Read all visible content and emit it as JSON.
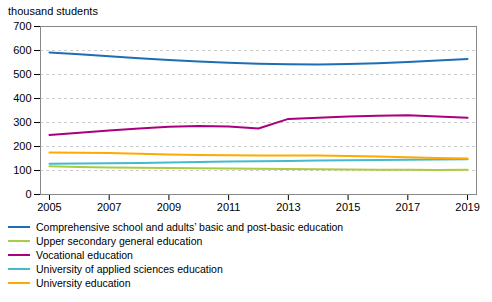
{
  "chart_data": {
    "type": "line",
    "ylabel": "thousand students",
    "x": [
      2005,
      2006,
      2007,
      2008,
      2009,
      2010,
      2011,
      2012,
      2013,
      2014,
      2015,
      2016,
      2017,
      2018,
      2019
    ],
    "series": [
      {
        "name": "Comprehensive school and adults’ basic and post-basic education",
        "color": "#1f6eb5",
        "values": [
          592,
          584,
          576,
          568,
          560,
          554,
          549,
          545,
          543,
          542,
          544,
          547,
          552,
          558,
          565
        ]
      },
      {
        "name": "Upper secondary general education",
        "color": "#aacc44",
        "values": [
          118,
          115,
          113,
          111,
          110,
          109,
          108,
          107,
          106,
          105,
          104,
          103,
          103,
          102,
          103
        ]
      },
      {
        "name": "Vocational education",
        "color": "#aa007f",
        "values": [
          248,
          257,
          267,
          275,
          282,
          285,
          283,
          275,
          315,
          320,
          325,
          328,
          330,
          325,
          320
        ]
      },
      {
        "name": "University of applied sciences education",
        "color": "#44bbcc",
        "values": [
          128,
          129,
          130,
          131,
          133,
          135,
          138,
          139,
          140,
          142,
          143,
          144,
          145,
          146,
          147
        ]
      },
      {
        "name": "University education",
        "color": "#ffaa00",
        "values": [
          175,
          174,
          173,
          170,
          167,
          165,
          164,
          163,
          163,
          162,
          160,
          158,
          155,
          152,
          150
        ]
      }
    ],
    "xlim": [
      2004.7,
      2019.3
    ],
    "xticks": [
      2005,
      2007,
      2009,
      2011,
      2013,
      2015,
      2017,
      2019
    ],
    "ylim": [
      0,
      700
    ],
    "yticks": [
      0,
      100,
      200,
      300,
      400,
      500,
      600,
      700
    ],
    "grid": true,
    "legend": "bottom"
  }
}
